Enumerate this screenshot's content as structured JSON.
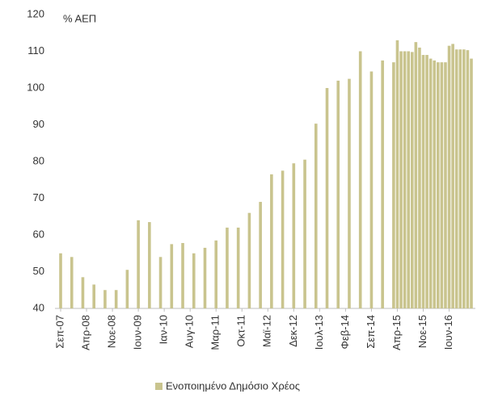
{
  "chart_data": {
    "type": "bar",
    "y_label": "% ΑΕΠ",
    "x": [
      "2007-09",
      "2007-12",
      "2008-03",
      "2008-06",
      "2008-09",
      "2008-12",
      "2009-03",
      "2009-06",
      "2009-09",
      "2009-12",
      "2010-03",
      "2010-06",
      "2010-09",
      "2010-12",
      "2011-03",
      "2011-06",
      "2011-09",
      "2011-12",
      "2012-03",
      "2012-06",
      "2012-09",
      "2012-12",
      "2013-03",
      "2013-06",
      "2013-09",
      "2013-12",
      "2014-03",
      "2014-06",
      "2014-09",
      "2014-12",
      "2015-03",
      "2015-04",
      "2015-05",
      "2015-06",
      "2015-07",
      "2015-08",
      "2015-09",
      "2015-10",
      "2015-11",
      "2015-12",
      "2016-01",
      "2016-02",
      "2016-03",
      "2016-04",
      "2016-05",
      "2016-06",
      "2016-07",
      "2016-08",
      "2016-09",
      "2016-10",
      "2016-11",
      "2016-12"
    ],
    "series": [
      {
        "name": "Ενοποιημένο Δημόσιο Χρέος",
        "color": "#c9c48e",
        "values": [
          55,
          54,
          48.5,
          46.5,
          45,
          45,
          50.5,
          64,
          63.5,
          54,
          57.5,
          57.8,
          55,
          56.5,
          58.5,
          62,
          62,
          66,
          69,
          76.5,
          77.5,
          79.5,
          80.5,
          90.3,
          100,
          102,
          102.5,
          110,
          104.5,
          107.5,
          107,
          113,
          110,
          110,
          110,
          109.8,
          112.5,
          111,
          109,
          109,
          108,
          107.5,
          107,
          107,
          107,
          111.5,
          112,
          110.5,
          110.5,
          110.5,
          110.3,
          108
        ]
      }
    ],
    "xlim": [
      "2007-09",
      "2016-12"
    ],
    "xticks": [
      {
        "value": "2007-09",
        "label": "Σεπ-07"
      },
      {
        "value": "2008-04",
        "label": "Απρ-08"
      },
      {
        "value": "2008-11",
        "label": "Νοε-08"
      },
      {
        "value": "2009-06",
        "label": "Ιουν-09"
      },
      {
        "value": "2010-01",
        "label": "Ιαν-10"
      },
      {
        "value": "2010-08",
        "label": "Αυγ-10"
      },
      {
        "value": "2011-03",
        "label": "Μαρ-11"
      },
      {
        "value": "2011-10",
        "label": "Οκτ-11"
      },
      {
        "value": "2012-05",
        "label": "Μαϊ-12"
      },
      {
        "value": "2012-12",
        "label": "Δεκ-12"
      },
      {
        "value": "2013-07",
        "label": "Ιουλ-13"
      },
      {
        "value": "2014-02",
        "label": "Φεβ-14"
      },
      {
        "value": "2014-09",
        "label": "Σεπ-14"
      },
      {
        "value": "2015-04",
        "label": "Απρ-15"
      },
      {
        "value": "2015-11",
        "label": "Νοε-15"
      },
      {
        "value": "2016-06",
        "label": "Ιουν-16"
      }
    ],
    "ylim": [
      40,
      120
    ],
    "yticks": [
      40,
      50,
      60,
      70,
      80,
      90,
      100,
      110,
      120
    ],
    "legend": "bottom"
  }
}
